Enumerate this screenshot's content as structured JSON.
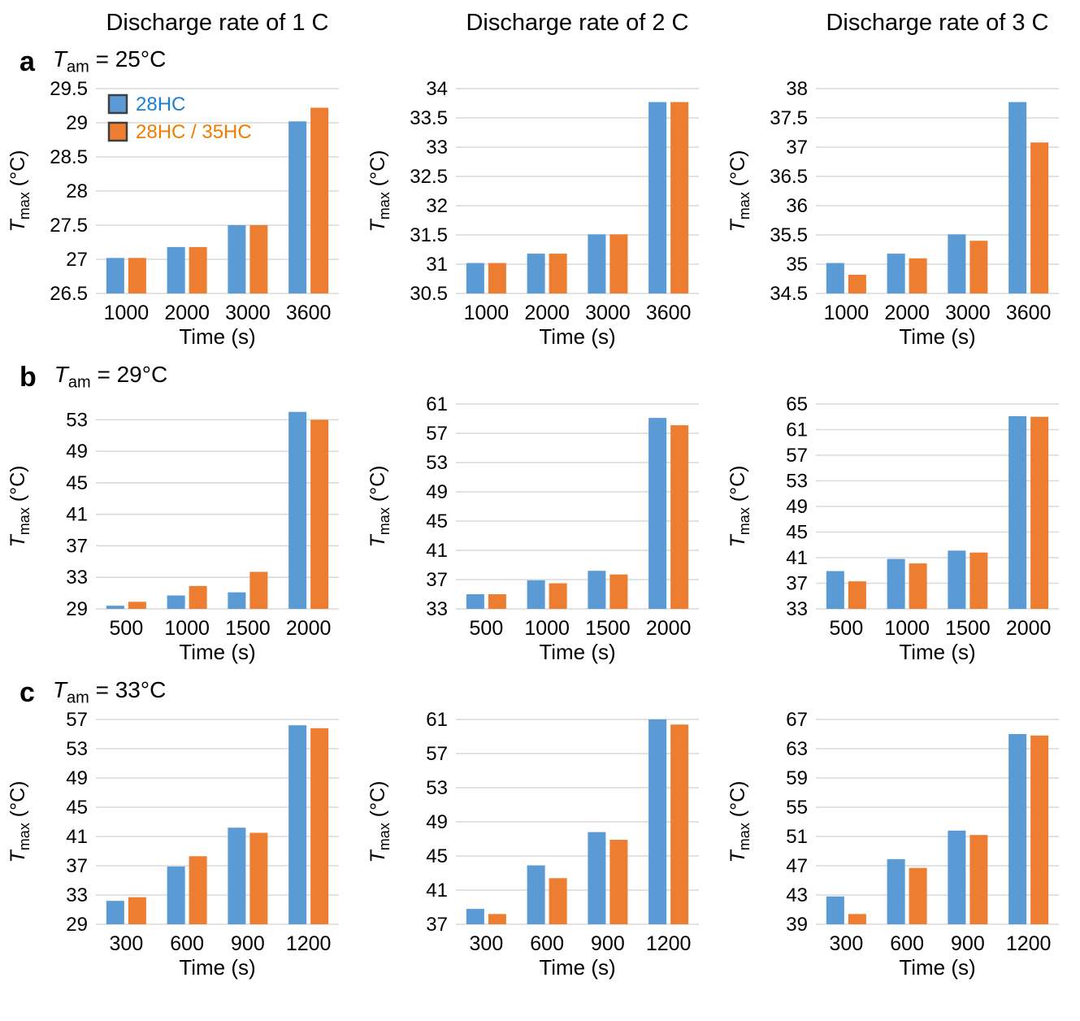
{
  "figure": {
    "column_headers": [
      "Discharge rate of 1 C",
      "Discharge rate of 2 C",
      "Discharge rate of 3 C"
    ],
    "rows": [
      {
        "panel": "a",
        "t_symbol": "T",
        "t_sub": "am",
        "t_rest": " = 25°C"
      },
      {
        "panel": "b",
        "t_symbol": "T",
        "t_sub": "am",
        "t_rest": " = 29°C"
      },
      {
        "panel": "c",
        "t_symbol": "T",
        "t_sub": "am",
        "t_rest": " = 33°C"
      }
    ],
    "axes": {
      "x_title": "Time (s)",
      "y_symbol": "T",
      "y_sub": "max",
      "y_rest": " (°C)"
    },
    "legend": {
      "items": [
        {
          "label": "28HC"
        },
        {
          "label": "28HC / 35HC"
        }
      ]
    },
    "colors": {
      "series": [
        "#5B9BD5",
        "#ED7D31"
      ],
      "legend_text": [
        "#1B7FD4",
        "#F07C00"
      ],
      "swatch_border": "#3F3F3F",
      "gridline": "#D9D9D9",
      "text": "#000000"
    }
  },
  "chart_data": [
    {
      "type": "bar",
      "panel": "a",
      "discharge_rate": "1 C",
      "ambient": "25°C",
      "categories": [
        "1000",
        "2000",
        "3000",
        "3600"
      ],
      "series": [
        {
          "name": "28HC",
          "values": [
            27.02,
            27.18,
            27.5,
            29.02
          ]
        },
        {
          "name": "28HC / 35HC",
          "values": [
            27.02,
            27.18,
            27.5,
            29.22
          ]
        }
      ],
      "ylim": [
        26.5,
        29.5
      ],
      "yticks": [
        "26.5",
        "27",
        "27.5",
        "28",
        "28.5",
        "29",
        "29.5"
      ],
      "xlabel": "Time (s)",
      "ylabel": "Tmax (°C)",
      "grid": true,
      "show_legend": true,
      "legend_position": "top-left"
    },
    {
      "type": "bar",
      "panel": "a",
      "discharge_rate": "2 C",
      "ambient": "25°C",
      "categories": [
        "1000",
        "2000",
        "3000",
        "3600"
      ],
      "series": [
        {
          "name": "28HC",
          "values": [
            31.02,
            31.18,
            31.51,
            33.77
          ]
        },
        {
          "name": "28HC / 35HC",
          "values": [
            31.02,
            31.18,
            31.51,
            33.77
          ]
        }
      ],
      "ylim": [
        30.5,
        34
      ],
      "yticks": [
        "30.5",
        "31",
        "31.5",
        "32",
        "32.5",
        "33",
        "33.5",
        "34"
      ],
      "xlabel": "Time (s)",
      "ylabel": "Tmax (°C)",
      "grid": true,
      "show_legend": false
    },
    {
      "type": "bar",
      "panel": "a",
      "discharge_rate": "3 C",
      "ambient": "25°C",
      "categories": [
        "1000",
        "2000",
        "3000",
        "3600"
      ],
      "series": [
        {
          "name": "28HC",
          "values": [
            35.02,
            35.18,
            35.51,
            37.77
          ]
        },
        {
          "name": "28HC / 35HC",
          "values": [
            34.82,
            35.1,
            35.4,
            37.08
          ]
        }
      ],
      "ylim": [
        34.5,
        38
      ],
      "yticks": [
        "34.5",
        "35",
        "35.5",
        "36",
        "36.5",
        "37",
        "37.5",
        "38"
      ],
      "xlabel": "Time (s)",
      "ylabel": "Tmax (°C)",
      "grid": true,
      "show_legend": false
    },
    {
      "type": "bar",
      "panel": "b",
      "discharge_rate": "1 C",
      "ambient": "29°C",
      "categories": [
        "500",
        "1000",
        "1500",
        "2000"
      ],
      "series": [
        {
          "name": "28HC",
          "values": [
            29.4,
            30.7,
            31.1,
            54.0
          ]
        },
        {
          "name": "28HC / 35HC",
          "values": [
            29.9,
            31.9,
            33.7,
            53.0
          ]
        }
      ],
      "ylim": [
        29,
        55
      ],
      "yticks": [
        "29",
        "33",
        "37",
        "41",
        "45",
        "49",
        "53"
      ],
      "xlabel": "Time (s)",
      "ylabel": "Tmax (°C)",
      "grid": true,
      "show_legend": false
    },
    {
      "type": "bar",
      "panel": "b",
      "discharge_rate": "2 C",
      "ambient": "29°C",
      "categories": [
        "500",
        "1000",
        "1500",
        "2000"
      ],
      "series": [
        {
          "name": "28HC",
          "values": [
            35.0,
            36.9,
            38.2,
            59.1
          ]
        },
        {
          "name": "28HC / 35HC",
          "values": [
            35.0,
            36.5,
            37.7,
            58.1
          ]
        }
      ],
      "ylim": [
        33,
        61
      ],
      "yticks": [
        "33",
        "37",
        "41",
        "45",
        "49",
        "53",
        "57",
        "61"
      ],
      "xlabel": "Time (s)",
      "ylabel": "Tmax (°C)",
      "grid": true,
      "show_legend": false
    },
    {
      "type": "bar",
      "panel": "b",
      "discharge_rate": "3 C",
      "ambient": "29°C",
      "categories": [
        "500",
        "1000",
        "1500",
        "2000"
      ],
      "series": [
        {
          "name": "28HC",
          "values": [
            38.9,
            40.8,
            42.1,
            63.1
          ]
        },
        {
          "name": "28HC / 35HC",
          "values": [
            37.3,
            40.1,
            41.8,
            63.0
          ]
        }
      ],
      "ylim": [
        33,
        65
      ],
      "yticks": [
        "33",
        "37",
        "41",
        "45",
        "49",
        "53",
        "57",
        "61",
        "65"
      ],
      "xlabel": "Time (s)",
      "ylabel": "Tmax (°C)",
      "grid": true,
      "show_legend": false
    },
    {
      "type": "bar",
      "panel": "c",
      "discharge_rate": "1 C",
      "ambient": "33°C",
      "categories": [
        "300",
        "600",
        "900",
        "1200"
      ],
      "series": [
        {
          "name": "28HC",
          "values": [
            32.2,
            36.9,
            42.2,
            56.2
          ]
        },
        {
          "name": "28HC / 35HC",
          "values": [
            32.7,
            38.3,
            41.5,
            55.8
          ]
        }
      ],
      "ylim": [
        29,
        57
      ],
      "yticks": [
        "29",
        "33",
        "37",
        "41",
        "45",
        "49",
        "53",
        "57"
      ],
      "xlabel": "Time (s)",
      "ylabel": "Tmax (°C)",
      "grid": true,
      "show_legend": false
    },
    {
      "type": "bar",
      "panel": "c",
      "discharge_rate": "2 C",
      "ambient": "33°C",
      "categories": [
        "300",
        "600",
        "900",
        "1200"
      ],
      "series": [
        {
          "name": "28HC",
          "values": [
            38.8,
            43.9,
            47.8,
            61.0
          ]
        },
        {
          "name": "28HC / 35HC",
          "values": [
            38.2,
            42.4,
            46.9,
            60.4
          ]
        }
      ],
      "ylim": [
        37,
        61
      ],
      "yticks": [
        "37",
        "41",
        "45",
        "49",
        "53",
        "57",
        "61"
      ],
      "xlabel": "Time (s)",
      "ylabel": "Tmax (°C)",
      "grid": true,
      "show_legend": false
    },
    {
      "type": "bar",
      "panel": "c",
      "discharge_rate": "3 C",
      "ambient": "33°C",
      "categories": [
        "300",
        "600",
        "900",
        "1200"
      ],
      "series": [
        {
          "name": "28HC",
          "values": [
            42.8,
            47.9,
            51.8,
            65.0
          ]
        },
        {
          "name": "28HC / 35HC",
          "values": [
            40.4,
            46.7,
            51.2,
            64.8
          ]
        }
      ],
      "ylim": [
        39,
        67
      ],
      "yticks": [
        "39",
        "43",
        "47",
        "51",
        "55",
        "59",
        "63",
        "67"
      ],
      "xlabel": "Time (s)",
      "ylabel": "Tmax (°C)",
      "grid": true,
      "show_legend": false
    }
  ]
}
